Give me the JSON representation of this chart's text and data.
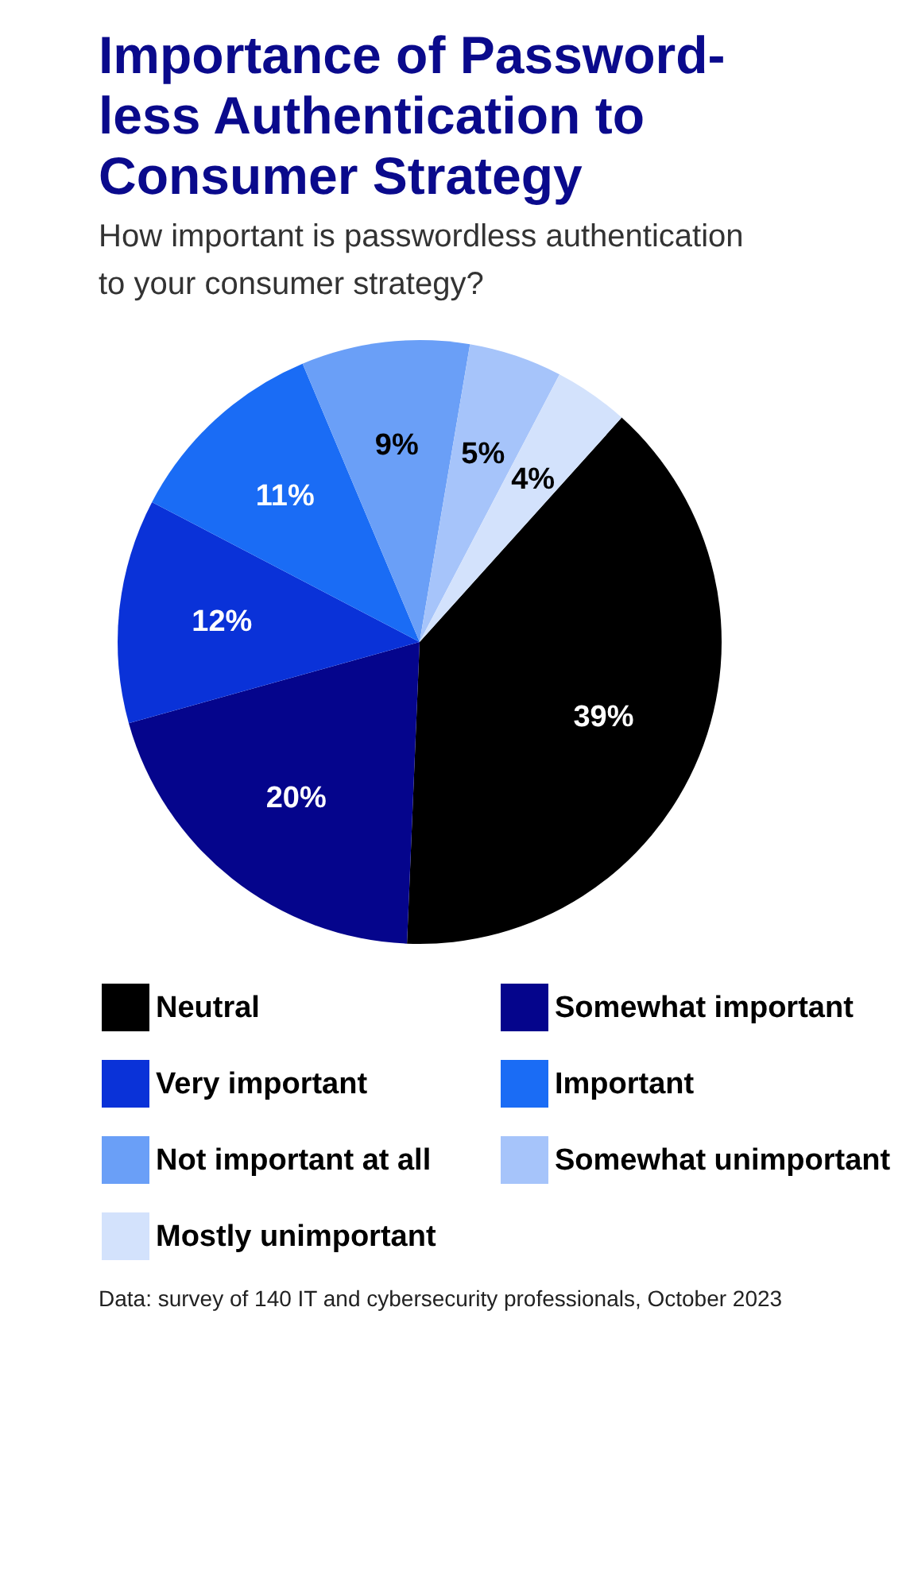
{
  "chart_data": {
    "type": "pie",
    "title": "Importance of Password-less Authentication to Consumer Strategy",
    "subtitle": "How important is passwordless authentication to your consumer strategy?",
    "categories": [
      "Neutral",
      "Somewhat important",
      "Very important",
      "Important",
      "Not important at all",
      "Somewhat unimportant",
      "Mostly unimportant"
    ],
    "values": [
      39,
      20,
      12,
      11,
      9,
      5,
      4
    ],
    "value_labels": [
      "39%",
      "20%",
      "12%",
      "11%",
      "9%",
      "5%",
      "4%"
    ],
    "colors": [
      "#000000",
      "#05058c",
      "#0a32d8",
      "#1a6cf5",
      "#6a9ff7",
      "#a6c4fa",
      "#d3e2fc"
    ],
    "legend": "bottom",
    "annotations": [
      "Data: survey of 140 IT and cybersecurity professionals, October 2023"
    ]
  }
}
